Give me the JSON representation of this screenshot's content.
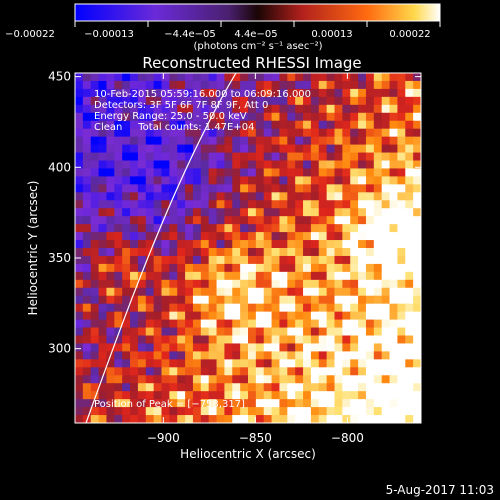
{
  "chart_data": {
    "type": "heatmap",
    "title": "Reconstructed RHESSI Image",
    "xlabel": "Heliocentric X (arcsec)",
    "ylabel": "Heliocentric Y (arcsec)",
    "xlim": [
      -948,
      -760
    ],
    "ylim": [
      259,
      452
    ],
    "x_ticks": [
      -900,
      -850,
      -800
    ],
    "x_tick_labels": [
      "−900",
      "−850",
      "−800"
    ],
    "y_ticks": [
      300,
      350,
      400,
      450
    ],
    "y_tick_labels": [
      "300",
      "350",
      "400",
      "450"
    ],
    "colorbar": {
      "range": [
        -0.00022,
        0.00022
      ],
      "tick_labels": [
        "−0.00022",
        "−0.00013",
        "−4.4e−05",
        "4.4e−05",
        "0.00013",
        "0.00022"
      ],
      "unit_label": "(photons cm⁻² s⁻¹ asec⁻²)",
      "colors": [
        "#0000ff",
        "#7a2cd6",
        "#5a2aa0",
        "#a01e2a",
        "#e0261c",
        "#ff8a10",
        "#ffe070",
        "#ffffff"
      ]
    },
    "annotations": [
      "10-Feb-2015 05:59:16.000 to 06:09:16.000",
      "Detectors: 3F 5F 6F 7F 8F 9F, Att 0",
      "Energy Range: 25.0 - 50.0 keV",
      "Clean     Total counts: 1.47E+04"
    ],
    "peak_label": "Position of Peak = [−758,317]",
    "peak": [
      -758,
      317
    ],
    "grid": false
  },
  "footer": {
    "date": "5-Aug-2017 11:03"
  }
}
